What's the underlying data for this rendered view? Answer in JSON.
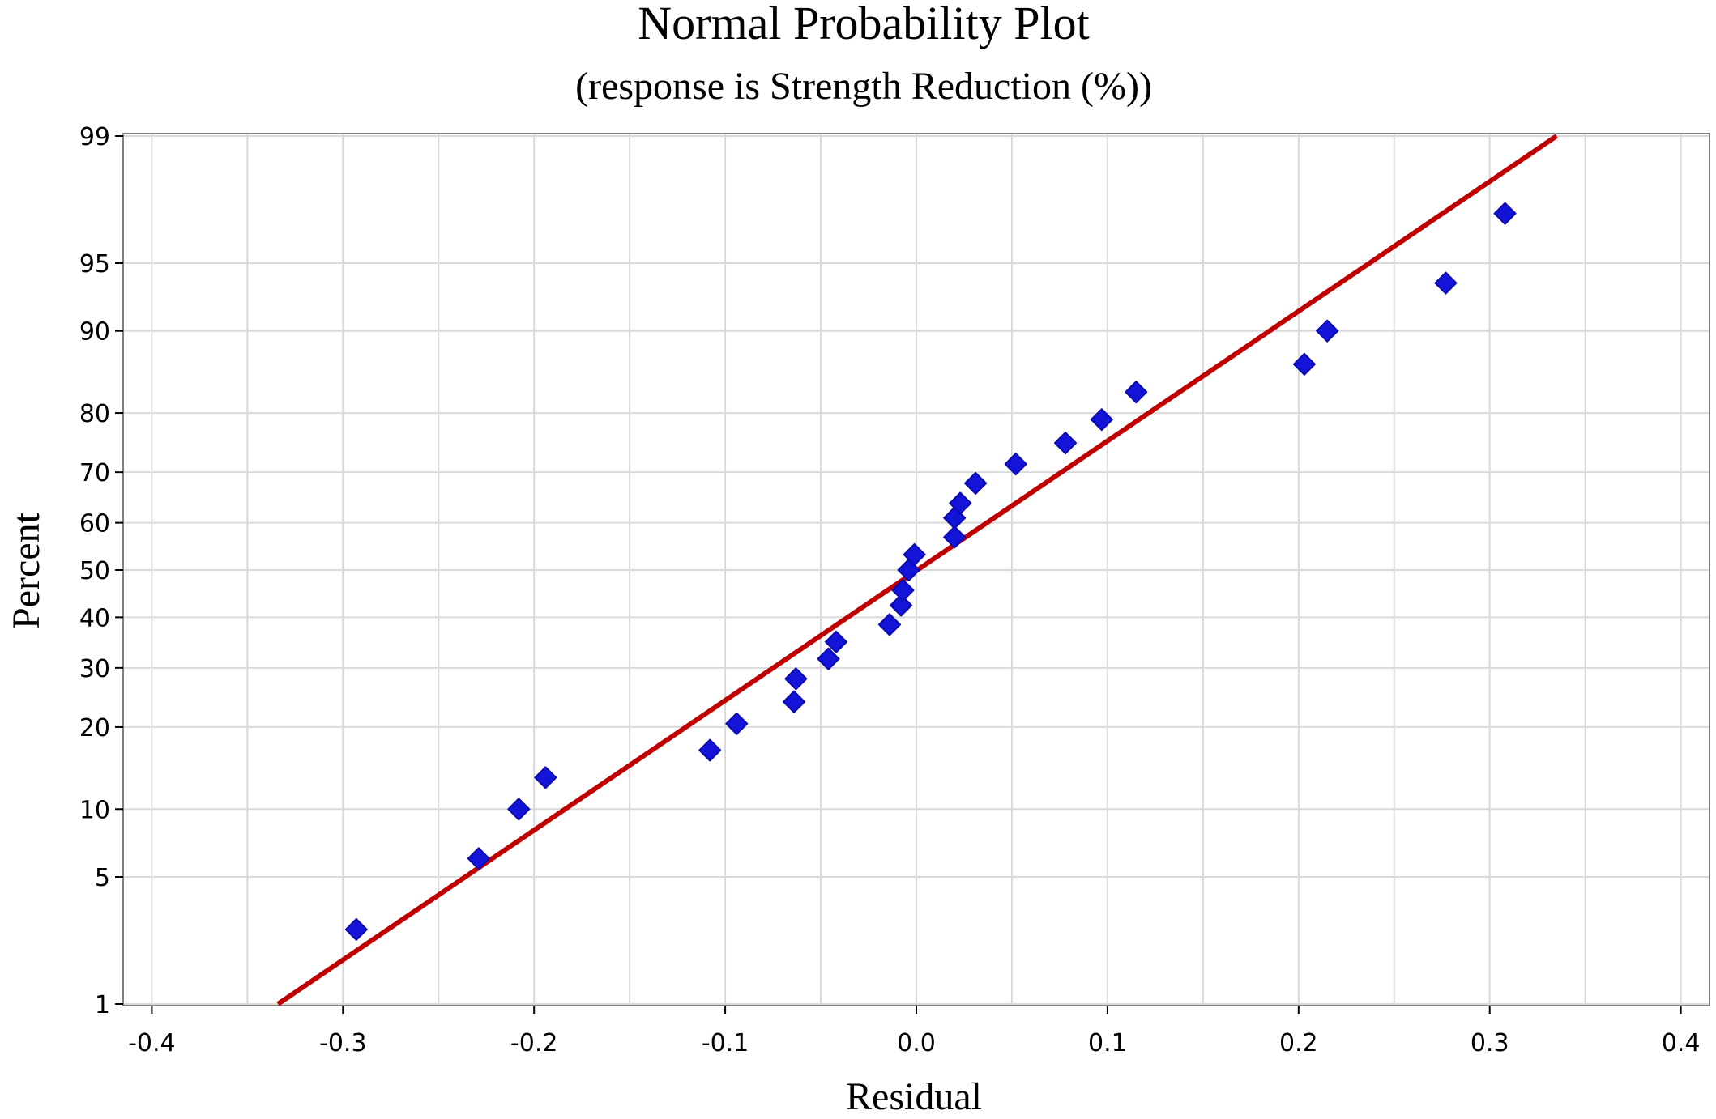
{
  "chart_data": {
    "type": "scatter",
    "title": "Normal Probability Plot",
    "subtitle": "(response is Strength Reduction (%))",
    "xlabel": "Residual",
    "ylabel": "Percent",
    "xlim": [
      -0.415,
      0.415
    ],
    "ylim": [
      1,
      99
    ],
    "y_scale": "normal-probability",
    "grid": true,
    "x_ticks": [
      -0.4,
      -0.3,
      -0.2,
      -0.1,
      0.0,
      0.1,
      0.2,
      0.3,
      0.4
    ],
    "x_tick_labels": [
      "-0.4",
      "-0.3",
      "-0.2",
      "-0.1",
      "0.0",
      "0.1",
      "0.2",
      "0.3",
      "0.4"
    ],
    "y_ticks": [
      1,
      5,
      10,
      20,
      30,
      40,
      50,
      60,
      70,
      80,
      90,
      95,
      99
    ],
    "y_tick_labels": [
      "1",
      "5",
      "10",
      "20",
      "30",
      "40",
      "50",
      "60",
      "70",
      "80",
      "90",
      "95",
      "99"
    ],
    "x_minor_grid": [
      -0.35,
      -0.25,
      -0.15,
      -0.05,
      0.05,
      0.15,
      0.25,
      0.35
    ],
    "fit_line": {
      "x": [
        -0.334,
        0.335
      ],
      "y": [
        1,
        99
      ]
    },
    "points": [
      {
        "x": -0.293,
        "y": 2.7
      },
      {
        "x": -0.229,
        "y": 6.1
      },
      {
        "x": -0.208,
        "y": 10.0
      },
      {
        "x": -0.194,
        "y": 13.3
      },
      {
        "x": -0.108,
        "y": 16.7
      },
      {
        "x": -0.094,
        "y": 20.5
      },
      {
        "x": -0.064,
        "y": 24.0
      },
      {
        "x": -0.063,
        "y": 28.0
      },
      {
        "x": -0.046,
        "y": 31.7
      },
      {
        "x": -0.042,
        "y": 35.0
      },
      {
        "x": -0.014,
        "y": 38.5
      },
      {
        "x": -0.008,
        "y": 42.5
      },
      {
        "x": -0.007,
        "y": 45.7
      },
      {
        "x": -0.004,
        "y": 50.0
      },
      {
        "x": -0.001,
        "y": 53.3
      },
      {
        "x": 0.02,
        "y": 57.0
      },
      {
        "x": 0.02,
        "y": 61.0
      },
      {
        "x": 0.023,
        "y": 64.0
      },
      {
        "x": 0.031,
        "y": 67.9
      },
      {
        "x": 0.052,
        "y": 71.5
      },
      {
        "x": 0.078,
        "y": 75.2
      },
      {
        "x": 0.097,
        "y": 79.0
      },
      {
        "x": 0.115,
        "y": 83.0
      },
      {
        "x": 0.203,
        "y": 86.5
      },
      {
        "x": 0.215,
        "y": 90.0
      },
      {
        "x": 0.277,
        "y": 93.8
      },
      {
        "x": 0.308,
        "y": 97.2
      }
    ]
  }
}
